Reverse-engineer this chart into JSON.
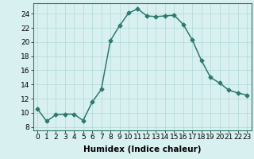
{
  "x": [
    0,
    1,
    2,
    3,
    4,
    5,
    6,
    7,
    8,
    9,
    10,
    11,
    12,
    13,
    14,
    15,
    16,
    17,
    18,
    19,
    20,
    21,
    22,
    23
  ],
  "y": [
    10.5,
    8.8,
    9.7,
    9.8,
    9.8,
    8.9,
    11.5,
    13.3,
    20.2,
    22.3,
    24.1,
    24.7,
    23.7,
    23.6,
    23.7,
    23.8,
    22.5,
    20.3,
    17.4,
    15.0,
    14.2,
    13.2,
    12.8,
    12.5
  ],
  "line_color": "#2d7a6e",
  "marker": "D",
  "marker_size": 2.5,
  "bg_color": "#d8f0f0",
  "grid_color": "#b0d8d8",
  "xlabel": "Humidex (Indice chaleur)",
  "ylabel": "",
  "xlim": [
    -0.5,
    23.5
  ],
  "ylim": [
    7.5,
    25.5
  ],
  "yticks": [
    8,
    10,
    12,
    14,
    16,
    18,
    20,
    22,
    24
  ],
  "xticks": [
    0,
    1,
    2,
    3,
    4,
    5,
    6,
    7,
    8,
    9,
    10,
    11,
    12,
    13,
    14,
    15,
    16,
    17,
    18,
    19,
    20,
    21,
    22,
    23
  ],
  "tick_fontsize": 6.5,
  "label_fontsize": 7.5,
  "line_width": 1.1
}
